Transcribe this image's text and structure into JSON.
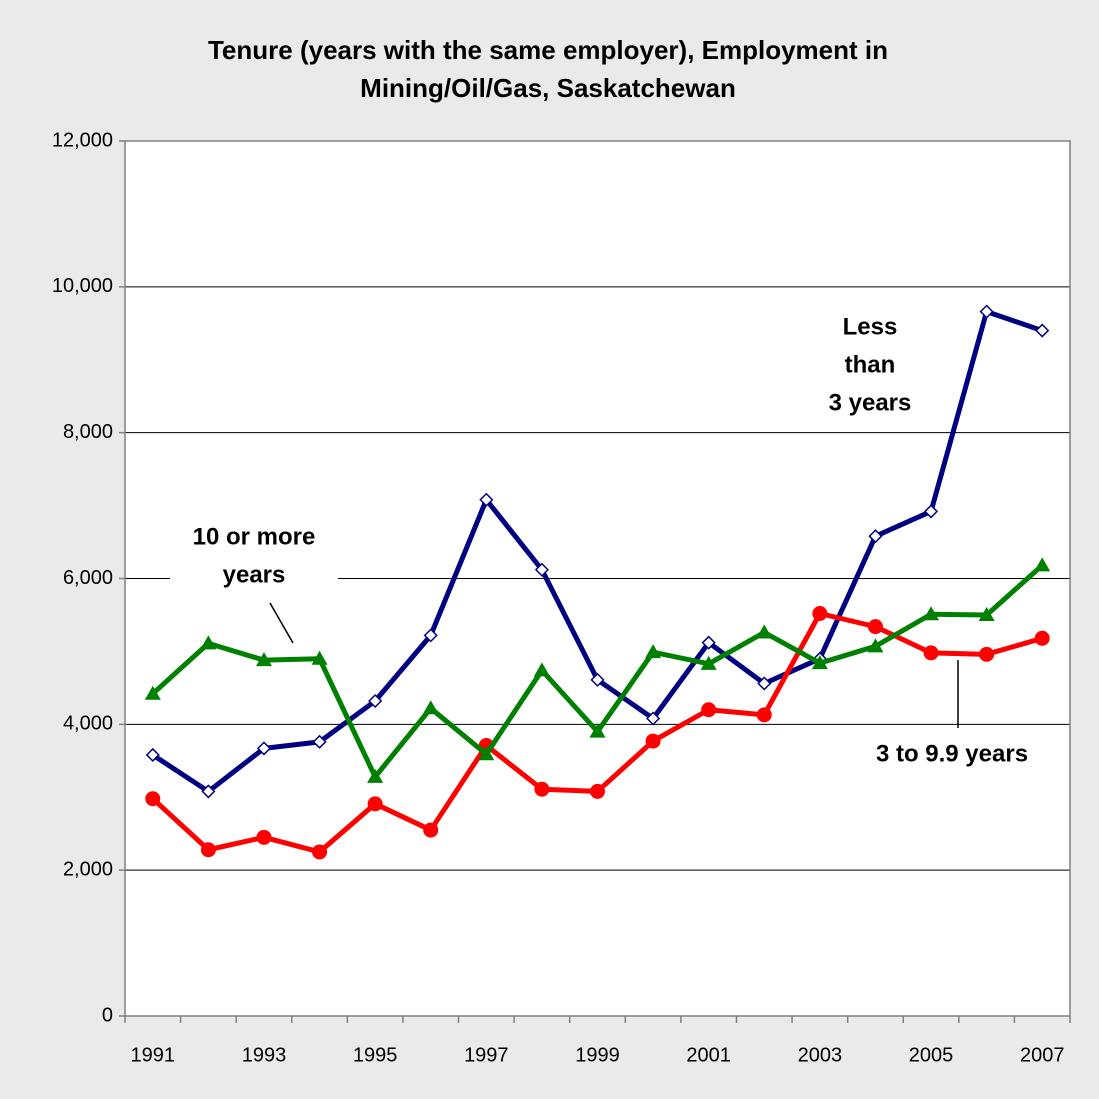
{
  "chart_data": {
    "type": "line",
    "title": [
      "Tenure (years with the same employer), Employment in",
      "Mining/Oil/Gas, Saskatchewan"
    ],
    "categories": [
      "1991",
      null,
      "1993",
      null,
      "1995",
      null,
      "1997",
      null,
      "1999",
      null,
      "2001",
      null,
      "2003",
      null,
      "2005",
      null,
      "2007"
    ],
    "series": [
      {
        "label": [
          "Less",
          "than",
          "3 years"
        ],
        "color": "#000080",
        "marker": "diamond",
        "values": [
          3580,
          3080,
          3670,
          3760,
          4320,
          5220,
          7080,
          6120,
          4610,
          4080,
          5120,
          4560,
          4900,
          6580,
          6920,
          9660,
          9400
        ]
      },
      {
        "label": [
          "3 to 9.9 years"
        ],
        "color": "#ff0000",
        "marker": "circle",
        "values": [
          2980,
          2280,
          2450,
          2250,
          2910,
          2550,
          3710,
          3110,
          3080,
          3770,
          4200,
          4130,
          5520,
          5340,
          4980,
          4960,
          5180
        ]
      },
      {
        "label": [
          "10 or more",
          "years"
        ],
        "color": "#008000",
        "marker": "triangle",
        "values": [
          4420,
          5110,
          4880,
          4900,
          3280,
          4220,
          3590,
          4740,
          3900,
          4990,
          4830,
          5260,
          4840,
          5070,
          5510,
          5500,
          6180
        ]
      }
    ],
    "ylim": [
      0,
      12000
    ],
    "yticks": [
      0,
      {
        "value": 2000,
        "label": "2,000"
      },
      {
        "value": 4000,
        "label": "4,000"
      },
      {
        "value": 6000,
        "label": "6,000"
      },
      {
        "value": 8000,
        "label": "8,000"
      },
      {
        "value": 10000,
        "label": "10,000"
      },
      {
        "value": 12000,
        "label": "12,000"
      }
    ],
    "grid": true
  }
}
